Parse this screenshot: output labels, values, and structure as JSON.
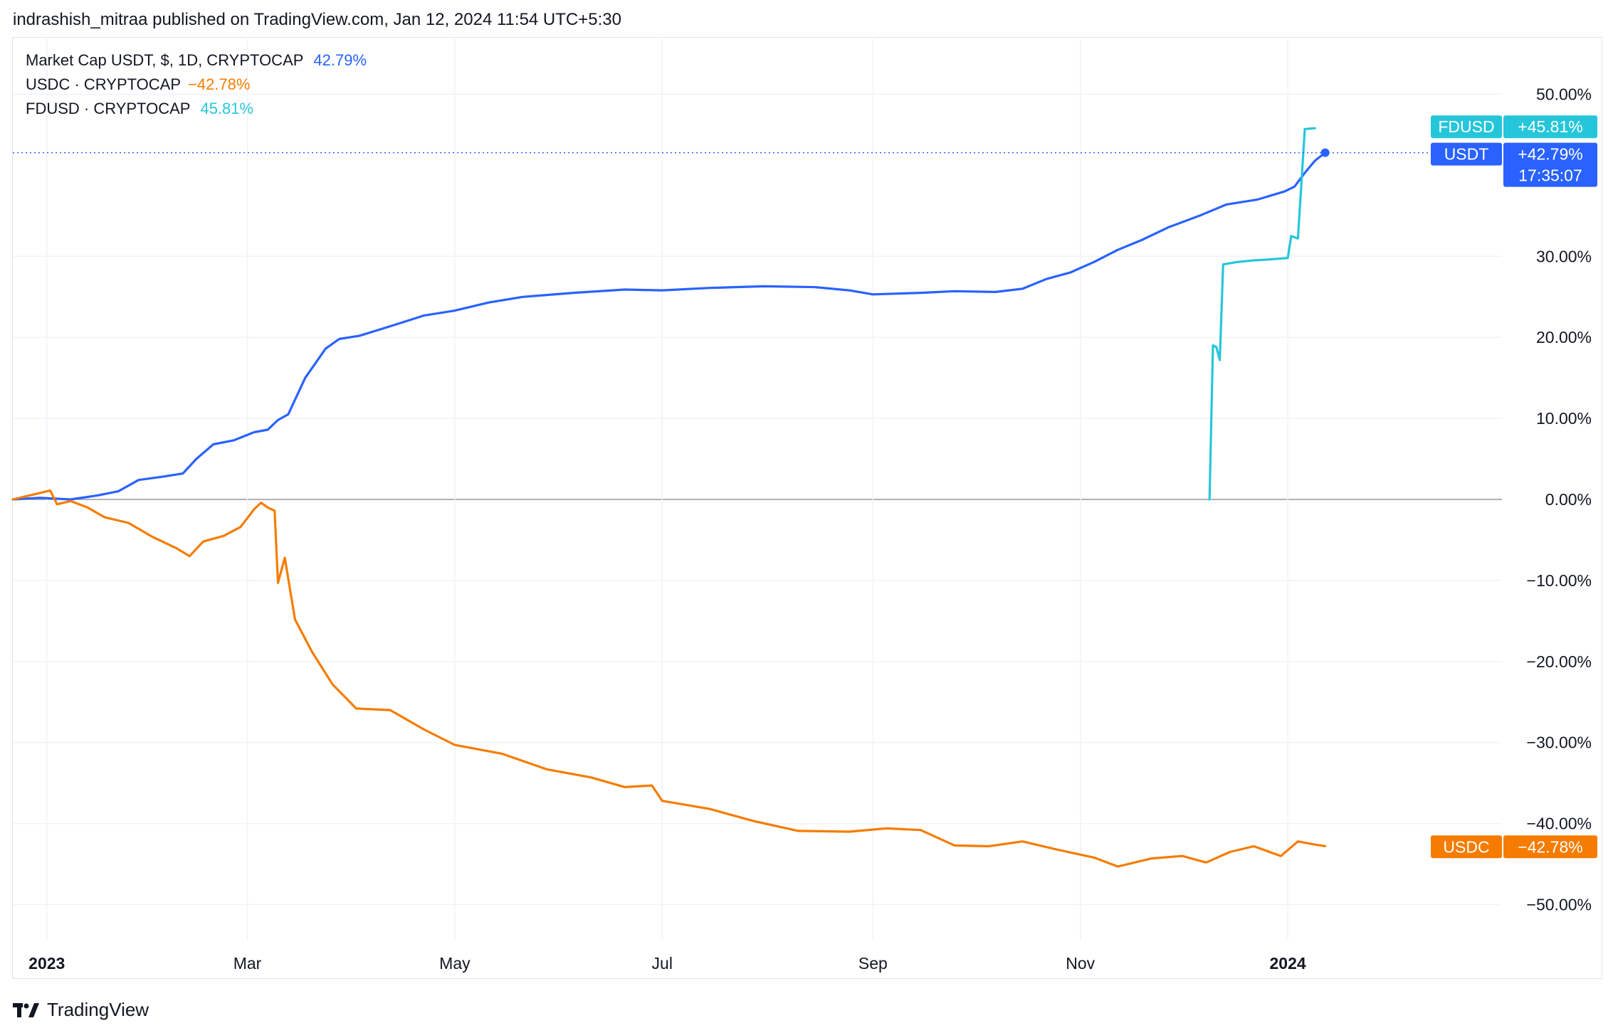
{
  "header": {
    "publish_line": "indrashish_mitraa published on TradingView.com, Jan 12, 2024 11:54 UTC+5:30"
  },
  "legend": [
    {
      "name": "Market Cap USDT, $, 1D, CRYPTOCAP",
      "value": "42.79%",
      "color": "#2962ff"
    },
    {
      "name": "USDC · CRYPTOCAP",
      "value": "−42.78%",
      "color": "#f57c00"
    },
    {
      "name": "FDUSD · CRYPTOCAP",
      "value": "45.81%",
      "color": "#26c6da"
    }
  ],
  "price_tags": {
    "fdusd": {
      "label": "FDUSD",
      "value": "+45.81%"
    },
    "usdt": {
      "label": "USDT",
      "value": "+42.79%",
      "countdown": "17:35:07"
    },
    "usdc": {
      "label": "USDC",
      "value": "−42.78%"
    }
  },
  "footer": {
    "brand": "TradingView"
  },
  "chart_data": {
    "type": "line",
    "y_unit": "percent change",
    "ylim": [
      -55,
      56
    ],
    "y_ticks": [
      50,
      30,
      20,
      10,
      0,
      -10,
      -20,
      -30,
      -40,
      -50
    ],
    "y_tick_labels": [
      "50.00%",
      "30.00%",
      "20.00%",
      "10.00%",
      "0.00%",
      "−10.00%",
      "−20.00%",
      "−30.00%",
      "−40.00%",
      "−50.00%"
    ],
    "x_tick_labels": [
      {
        "date": "2023-01-01",
        "label": "2023",
        "bold": true
      },
      {
        "date": "2023-03-01",
        "label": "Mar",
        "bold": false
      },
      {
        "date": "2023-05-01",
        "label": "May",
        "bold": false
      },
      {
        "date": "2023-07-01",
        "label": "Jul",
        "bold": false
      },
      {
        "date": "2023-09-01",
        "label": "Sep",
        "bold": false
      },
      {
        "date": "2023-11-01",
        "label": "Nov",
        "bold": false
      },
      {
        "date": "2024-01-01",
        "label": "2024",
        "bold": true
      }
    ],
    "xlim": [
      "2022-12-22",
      "2024-03-04"
    ],
    "grid": true,
    "series": [
      {
        "name": "USDT",
        "color": "#2962ff",
        "points": [
          [
            "2022-12-22",
            0
          ],
          [
            "2022-12-30",
            0.2
          ],
          [
            "2023-01-08",
            0
          ],
          [
            "2023-01-16",
            0.5
          ],
          [
            "2023-01-22",
            1.0
          ],
          [
            "2023-01-28",
            2.4
          ],
          [
            "2023-02-04",
            2.8
          ],
          [
            "2023-02-10",
            3.2
          ],
          [
            "2023-02-14",
            5.0
          ],
          [
            "2023-02-19",
            6.8
          ],
          [
            "2023-02-25",
            7.3
          ],
          [
            "2023-03-03",
            8.3
          ],
          [
            "2023-03-07",
            8.6
          ],
          [
            "2023-03-10",
            9.8
          ],
          [
            "2023-03-13",
            10.5
          ],
          [
            "2023-03-18",
            15.0
          ],
          [
            "2023-03-24",
            18.6
          ],
          [
            "2023-03-28",
            19.8
          ],
          [
            "2023-04-03",
            20.2
          ],
          [
            "2023-04-13",
            21.5
          ],
          [
            "2023-04-22",
            22.7
          ],
          [
            "2023-05-01",
            23.3
          ],
          [
            "2023-05-11",
            24.3
          ],
          [
            "2023-05-21",
            25.0
          ],
          [
            "2023-06-05",
            25.5
          ],
          [
            "2023-06-20",
            25.9
          ],
          [
            "2023-07-01",
            25.8
          ],
          [
            "2023-07-15",
            26.1
          ],
          [
            "2023-07-31",
            26.3
          ],
          [
            "2023-08-15",
            26.2
          ],
          [
            "2023-08-25",
            25.8
          ],
          [
            "2023-09-01",
            25.3
          ],
          [
            "2023-09-15",
            25.5
          ],
          [
            "2023-09-25",
            25.7
          ],
          [
            "2023-10-07",
            25.6
          ],
          [
            "2023-10-15",
            26.0
          ],
          [
            "2023-10-22",
            27.2
          ],
          [
            "2023-10-29",
            28.0
          ],
          [
            "2023-11-05",
            29.3
          ],
          [
            "2023-11-12",
            30.8
          ],
          [
            "2023-11-19",
            32.0
          ],
          [
            "2023-11-27",
            33.6
          ],
          [
            "2023-12-06",
            35.0
          ],
          [
            "2023-12-14",
            36.4
          ],
          [
            "2023-12-23",
            37.0
          ],
          [
            "2023-12-31",
            38.0
          ],
          [
            "2024-01-03",
            38.6
          ],
          [
            "2024-01-06",
            40.3
          ],
          [
            "2024-01-09",
            41.8
          ],
          [
            "2024-01-12",
            42.79
          ]
        ]
      },
      {
        "name": "USDC",
        "color": "#f57c00",
        "points": [
          [
            "2022-12-22",
            0
          ],
          [
            "2022-12-28",
            0.6
          ],
          [
            "2023-01-02",
            1.1
          ],
          [
            "2023-01-04",
            -0.6
          ],
          [
            "2023-01-08",
            -0.2
          ],
          [
            "2023-01-13",
            -1.0
          ],
          [
            "2023-01-18",
            -2.2
          ],
          [
            "2023-01-25",
            -2.9
          ],
          [
            "2023-02-01",
            -4.6
          ],
          [
            "2023-02-08",
            -6.0
          ],
          [
            "2023-02-12",
            -7.0
          ],
          [
            "2023-02-16",
            -5.2
          ],
          [
            "2023-02-22",
            -4.5
          ],
          [
            "2023-02-27",
            -3.4
          ],
          [
            "2023-03-03",
            -1.2
          ],
          [
            "2023-03-05",
            -0.4
          ],
          [
            "2023-03-07",
            -1.0
          ],
          [
            "2023-03-09",
            -1.4
          ],
          [
            "2023-03-10",
            -10.3
          ],
          [
            "2023-03-12",
            -7.2
          ],
          [
            "2023-03-15",
            -14.8
          ],
          [
            "2023-03-20",
            -18.8
          ],
          [
            "2023-03-26",
            -22.8
          ],
          [
            "2023-04-02",
            -25.8
          ],
          [
            "2023-04-12",
            -26.0
          ],
          [
            "2023-04-22",
            -28.4
          ],
          [
            "2023-05-01",
            -30.3
          ],
          [
            "2023-05-15",
            -31.4
          ],
          [
            "2023-05-28",
            -33.3
          ],
          [
            "2023-06-10",
            -34.3
          ],
          [
            "2023-06-20",
            -35.5
          ],
          [
            "2023-06-28",
            -35.3
          ],
          [
            "2023-07-01",
            -37.2
          ],
          [
            "2023-07-15",
            -38.2
          ],
          [
            "2023-07-28",
            -39.7
          ],
          [
            "2023-08-10",
            -40.9
          ],
          [
            "2023-08-25",
            -41.0
          ],
          [
            "2023-09-05",
            -40.6
          ],
          [
            "2023-09-15",
            -40.8
          ],
          [
            "2023-09-25",
            -42.7
          ],
          [
            "2023-10-05",
            -42.8
          ],
          [
            "2023-10-15",
            -42.2
          ],
          [
            "2023-10-25",
            -43.2
          ],
          [
            "2023-11-05",
            -44.2
          ],
          [
            "2023-11-12",
            -45.3
          ],
          [
            "2023-11-22",
            -44.3
          ],
          [
            "2023-12-01",
            -44.0
          ],
          [
            "2023-12-08",
            -44.8
          ],
          [
            "2023-12-15",
            -43.5
          ],
          [
            "2023-12-22",
            -42.8
          ],
          [
            "2023-12-30",
            -44.0
          ],
          [
            "2024-01-04",
            -42.2
          ],
          [
            "2024-01-09",
            -42.6
          ],
          [
            "2024-01-12",
            -42.78
          ]
        ]
      },
      {
        "name": "FDUSD",
        "color": "#26c6da",
        "points": [
          [
            "2023-12-09",
            0
          ],
          [
            "2023-12-10",
            19.0
          ],
          [
            "2023-12-11",
            18.8
          ],
          [
            "2023-12-12",
            17.2
          ],
          [
            "2023-12-13",
            29.0
          ],
          [
            "2023-12-17",
            29.3
          ],
          [
            "2023-12-22",
            29.5
          ],
          [
            "2023-12-26",
            29.6
          ],
          [
            "2024-01-01",
            29.8
          ],
          [
            "2024-01-02",
            32.5
          ],
          [
            "2024-01-04",
            32.2
          ],
          [
            "2024-01-06",
            45.7
          ],
          [
            "2024-01-09",
            45.81
          ]
        ]
      }
    ]
  }
}
